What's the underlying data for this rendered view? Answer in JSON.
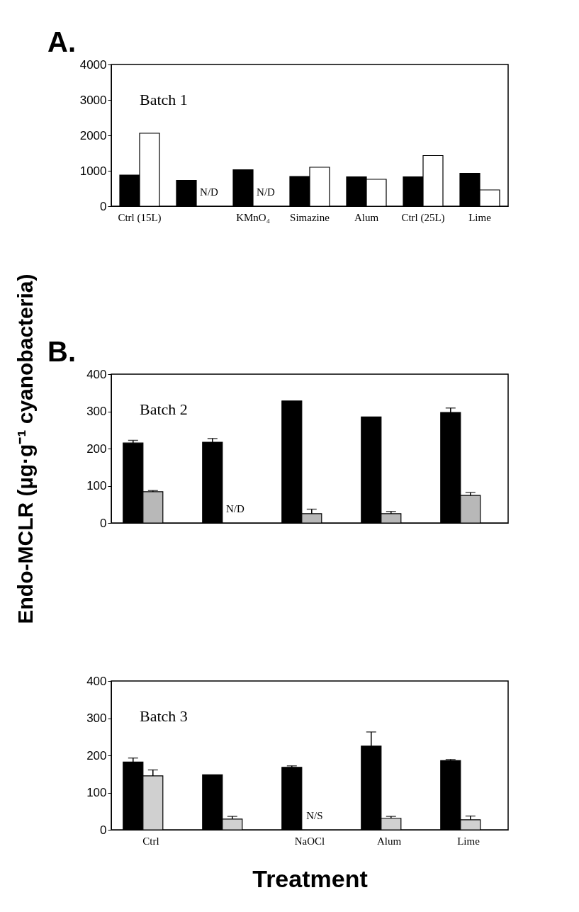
{
  "chart_data": [
    {
      "type": "bar",
      "title": "Batch 1",
      "categories": [
        "Ctrl (15L)",
        null,
        "KMnO₄",
        "Simazine",
        "Alum",
        "Ctrl (25L)",
        "Lime"
      ],
      "series": [
        {
          "color": "#000000",
          "values": [
            880,
            730,
            1030,
            840,
            830,
            830,
            930
          ]
        },
        {
          "color": "#ffffff",
          "values": [
            2060,
            null,
            null,
            1100,
            760,
            1430,
            460
          ]
        }
      ],
      "ylim": [
        0,
        4000
      ],
      "yticks": [
        0,
        1000,
        2000,
        3000,
        4000
      ],
      "grid": false,
      "legend": false,
      "annotations": [
        "A.",
        "N/D",
        "N/D"
      ]
    },
    {
      "type": "bar",
      "title": "Batch 2",
      "ylabel": "Endo-MCLR (µg·g⁻¹ cyanobacteria)",
      "categories": [
        null,
        null,
        null,
        null,
        null
      ],
      "series": [
        {
          "color": "#000000",
          "values": [
            215,
            217,
            328,
            285,
            297
          ],
          "errors": [
            7,
            10,
            null,
            null,
            12
          ]
        },
        {
          "color": "#b8b8b8",
          "values": [
            84,
            null,
            25,
            25,
            74
          ],
          "errors": [
            3,
            null,
            12,
            6,
            8
          ]
        }
      ],
      "ylim": [
        0,
        400
      ],
      "yticks": [
        0,
        100,
        200,
        300,
        400
      ],
      "grid": false,
      "legend": false,
      "tick_labels": "y",
      "annotations": [
        "B.",
        "N/D"
      ]
    },
    {
      "type": "bar",
      "title": "Batch 3",
      "xlabel": "Treatment",
      "categories": [
        "Ctrl",
        null,
        "NaOCl",
        "Alum",
        "Lime"
      ],
      "series": [
        {
          "color": "#000000",
          "values": [
            182,
            148,
            168,
            225,
            186
          ],
          "errors": [
            11,
            null,
            4,
            38,
            3
          ]
        },
        {
          "color": "#d0d0d0",
          "values": [
            145,
            29,
            null,
            31,
            27
          ],
          "errors": [
            16,
            7,
            null,
            5,
            10
          ]
        }
      ],
      "ylim": [
        0,
        400
      ],
      "yticks": [
        0,
        100,
        200,
        300,
        400
      ],
      "grid": false,
      "legend": false,
      "annotations": [
        "N/S"
      ]
    }
  ]
}
